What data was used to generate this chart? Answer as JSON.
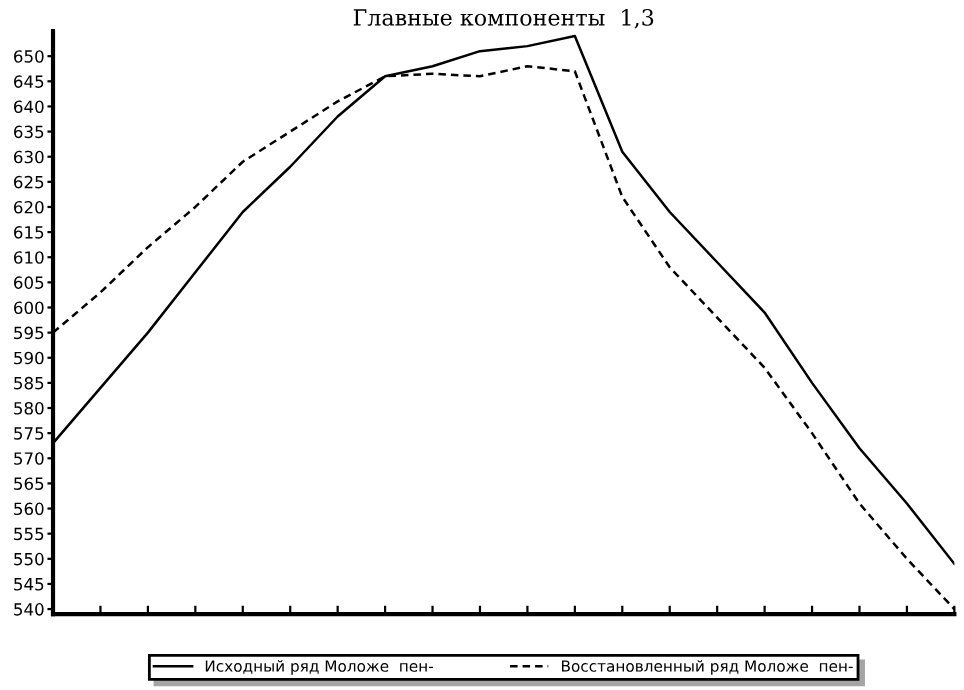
{
  "chart_data": {
    "type": "line",
    "title": "Главные компоненты  1,3",
    "categories": [
      null,
      null,
      null,
      null,
      null,
      null,
      null,
      null,
      null,
      null,
      null,
      null,
      null,
      null,
      null,
      null,
      null,
      null,
      null,
      null
    ],
    "series": [
      {
        "name": "Исходный ряд Моложе  пен-",
        "color": "#000000",
        "line_style": "solid",
        "values": [
          573,
          584,
          595,
          607,
          619,
          628,
          638,
          646,
          648,
          651,
          652,
          654,
          631,
          619,
          609,
          599,
          585,
          572,
          561,
          549
        ]
      },
      {
        "name": "Восстановленный ряд Моложе  пен-",
        "color": "#000000",
        "line_style": "dashed",
        "values": [
          595,
          603,
          612,
          620,
          629,
          635,
          641,
          646,
          646.5,
          646,
          648,
          647,
          622,
          608,
          598,
          588,
          575,
          561,
          550,
          540
        ]
      }
    ],
    "ylim": [
      539,
      655
    ],
    "yticks": [
      540,
      545,
      550,
      555,
      560,
      565,
      570,
      575,
      580,
      585,
      590,
      595,
      600,
      605,
      610,
      615,
      620,
      625,
      630,
      635,
      640,
      645,
      650
    ],
    "tick_labels": "y",
    "grid": false,
    "legend": "bottom",
    "marker": "none"
  }
}
